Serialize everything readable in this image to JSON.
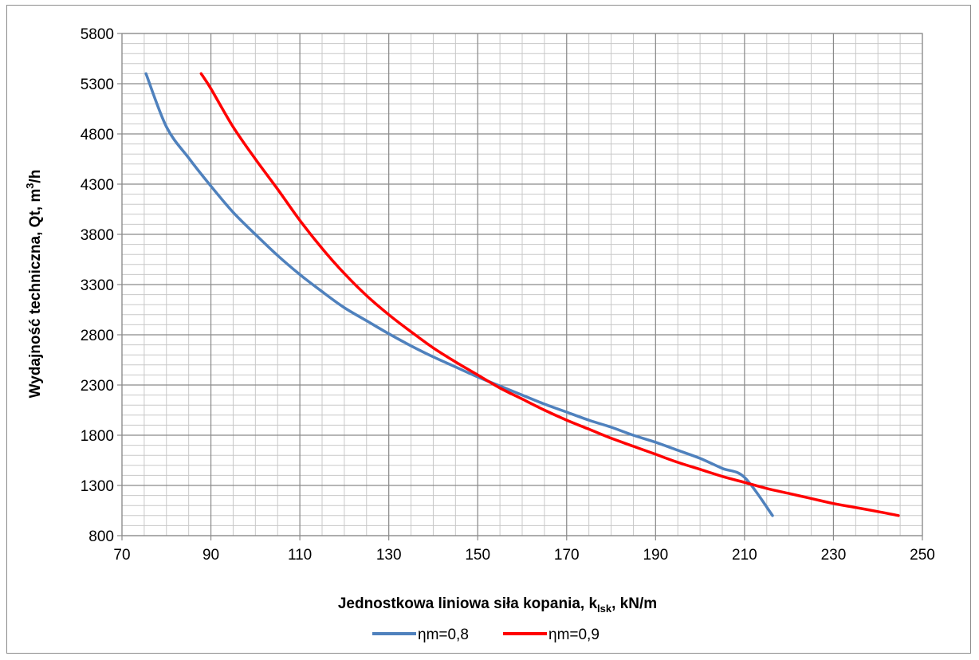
{
  "chart_data": {
    "type": "line",
    "title": "",
    "xlabel": {
      "main": "Jednostkowa liniowa siła kopania, k",
      "sub": "lsk",
      "suffix": ", kN/m"
    },
    "ylabel": {
      "main": "Wydajność techniczna, Qt, m",
      "sup": "3",
      "suffix": "/h"
    },
    "xlim": [
      70,
      250
    ],
    "ylim": [
      800,
      5800
    ],
    "x_major_ticks": [
      "70",
      "90",
      "110",
      "130",
      "150",
      "170",
      "190",
      "210",
      "230",
      "250"
    ],
    "y_major_ticks": [
      "800",
      "1300",
      "1800",
      "2300",
      "2800",
      "3300",
      "3800",
      "4300",
      "4800",
      "5300",
      "5800"
    ],
    "x_minor_step": 5,
    "y_minor_step": 100,
    "grid": true,
    "legend_position": "bottom",
    "series": [
      {
        "name": "ηm=0,8",
        "color": "#4f81bd",
        "x": [
          75.4,
          80,
          85,
          90,
          95,
          100,
          105,
          110,
          115,
          120,
          125,
          130,
          135,
          140,
          145,
          150,
          155,
          160,
          165,
          170,
          175,
          180,
          185,
          190,
          195,
          200,
          205,
          210,
          216.3
        ],
        "y": [
          5400,
          4870,
          4560,
          4280,
          4020,
          3800,
          3590,
          3400,
          3230,
          3070,
          2940,
          2810,
          2690,
          2580,
          2480,
          2380,
          2290,
          2200,
          2110,
          2030,
          1950,
          1880,
          1800,
          1730,
          1650,
          1570,
          1470,
          1380,
          1000
        ]
      },
      {
        "name": "ηm=0,9",
        "color": "#ff0000",
        "x": [
          87.8,
          90,
          95,
          100,
          105,
          110,
          115,
          120,
          125,
          130,
          135,
          140,
          145,
          150,
          155,
          160,
          165,
          170,
          175,
          180,
          185,
          190,
          195,
          200,
          205,
          210,
          215,
          220,
          225,
          230,
          235,
          240,
          244.6
        ],
        "y": [
          5400,
          5250,
          4870,
          4550,
          4250,
          3940,
          3660,
          3410,
          3190,
          3000,
          2830,
          2670,
          2530,
          2400,
          2270,
          2160,
          2050,
          1950,
          1860,
          1770,
          1690,
          1610,
          1530,
          1460,
          1390,
          1330,
          1270,
          1220,
          1170,
          1120,
          1080,
          1040,
          1000
        ]
      }
    ]
  }
}
